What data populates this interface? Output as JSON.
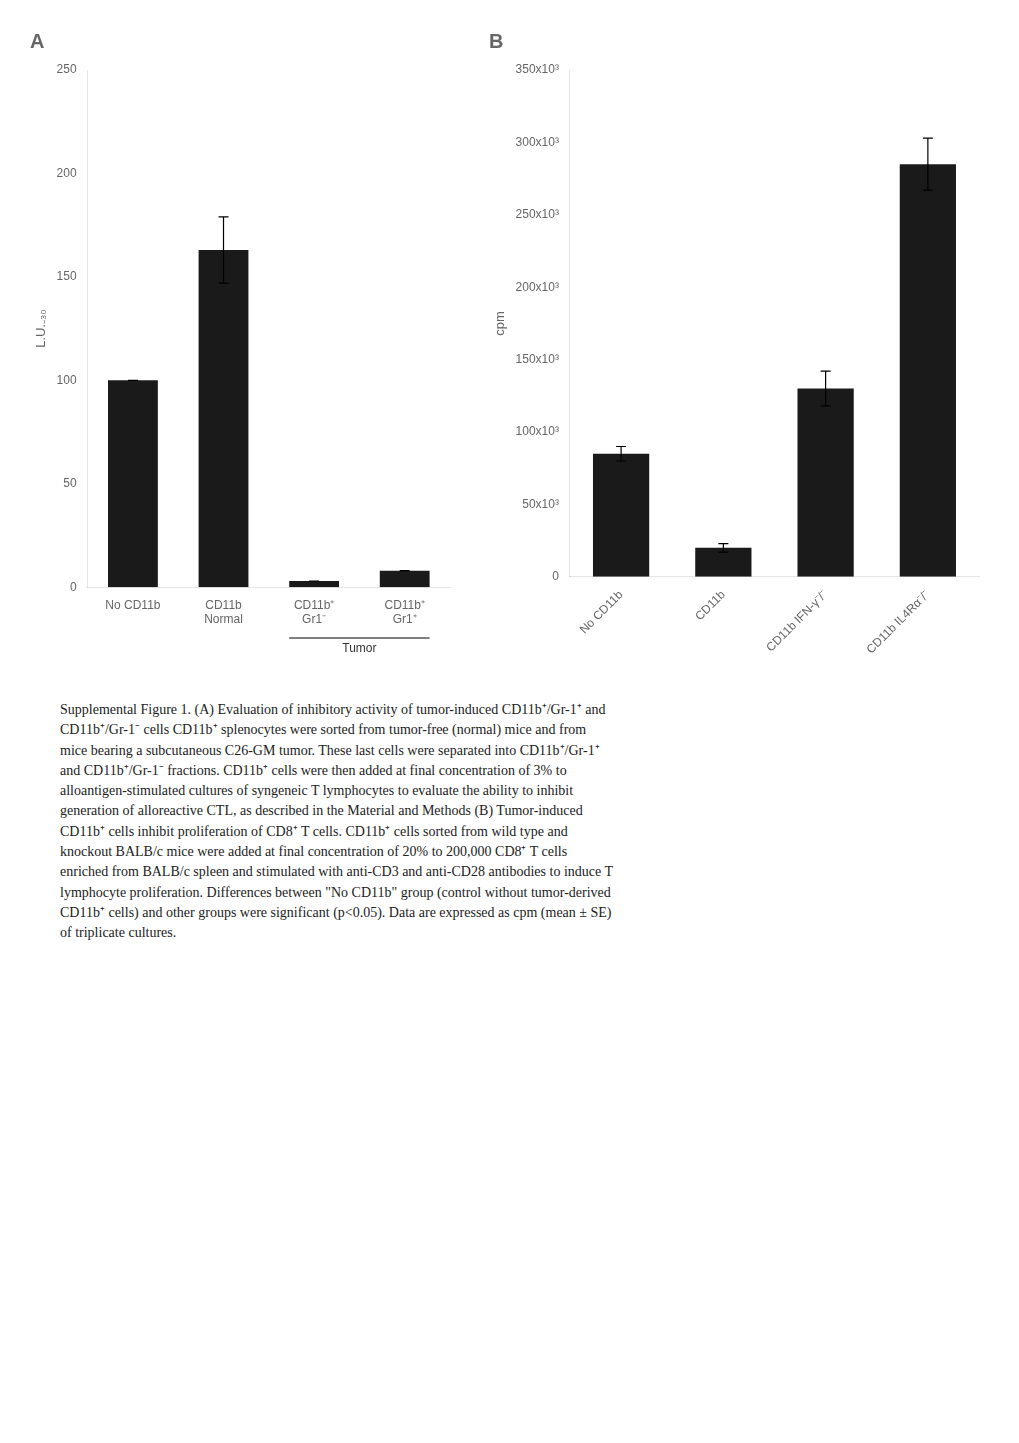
{
  "chart_data": [
    {
      "type": "bar",
      "title": "A",
      "y_label": "L.U.₋₃₀",
      "categories": [
        "No CD11b",
        "CD11b\nNormal",
        "CD11b⁺\nGr1⁻",
        "CD11b⁺\nGr1⁺"
      ],
      "values": [
        100,
        163,
        3,
        8
      ],
      "errors": [
        0,
        16,
        0,
        0
      ],
      "color": "#1a1a1a",
      "ylim": [
        0,
        250
      ],
      "yticks": [
        0,
        50,
        100,
        150,
        200,
        250
      ],
      "grid": false,
      "annotations": [
        {
          "text": "Tumor",
          "bracket": [
            2,
            3
          ]
        }
      ]
    },
    {
      "type": "bar",
      "title": "B",
      "y_label": "cpm",
      "categories": [
        "No CD11b",
        "CD11b",
        "CD11b IFN-γ⁻/⁻",
        "CD11b IL4Rα⁻/⁻"
      ],
      "values": [
        85000,
        20000,
        130000,
        285000
      ],
      "errors": [
        5000,
        3000,
        12000,
        18000
      ],
      "color": "#1a1a1a",
      "ylim": [
        0,
        350000
      ],
      "yticks": [
        0,
        {
          "value": 50000,
          "label": "50x10³"
        },
        {
          "value": 100000,
          "label": "100x10³"
        },
        {
          "value": 150000,
          "label": "150x10³"
        },
        {
          "value": 200000,
          "label": "200x10³"
        },
        {
          "value": 250000,
          "label": "250x10³"
        },
        {
          "value": 300000,
          "label": "300x10³"
        },
        {
          "value": 350000,
          "label": "350x10³"
        }
      ],
      "grid": false
    }
  ],
  "caption": "Supplemental Figure 1. (A) Evaluation of inhibitory activity of tumor-induced CD11b⁺/Gr-1⁺ and\nCD11b⁺/Gr-1⁻ cells CD11b⁺ splenocytes were sorted  from tumor-free (normal) mice and from\nmice bearing a subcutaneous C26-GM tumor. These last cells were separated into CD11b⁺/Gr-1⁺\nand CD11b⁺/Gr-1⁻ fractions. CD11b⁺ cells were then added at final concentration of 3% to\nalloantigen-stimulated cultures of syngeneic T lymphocytes to evaluate the ability to inhibit\ngeneration of alloreactive CTL, as described in the Material and Methods (B) Tumor-induced\nCD11b⁺ cells inhibit proliferation of CD8⁺ T cells. CD11b⁺ cells sorted from wild type and\nknockout BALB/c mice  were added at final concentration of 20% to 200,000 CD8⁺ T cells\nenriched from BALB/c spleen and stimulated with anti-CD3 and anti-CD28 antibodies to induce T\nlymphocyte proliferation. Differences between \"No CD11b\" group (control without tumor-derived\nCD11b⁺ cells) and other groups were significant (p<0.05). Data are expressed as cpm (mean ± SE)\nof triplicate cultures."
}
